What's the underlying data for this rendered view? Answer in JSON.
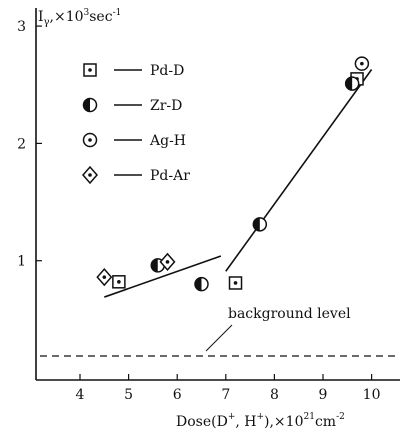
{
  "chart_data": {
    "type": "scatter",
    "ylabel_prefix": "I",
    "ylabel_sub": "γ",
    "ylabel_unit": ",×10",
    "ylabel_exp": "3",
    "ylabel_tail": "sec",
    "ylabel_tail_exp": "-1",
    "xlabel_a": "Dose(D",
    "xlabel_sup1": "+",
    "xlabel_b": ", H",
    "xlabel_sup2": "+",
    "xlabel_c": "),×10",
    "xlabel_exp": "21",
    "xlabel_d": "cm",
    "xlabel_exp2": "-2",
    "xlim": [
      3.1,
      10.7
    ],
    "ylim": [
      0,
      3.05
    ],
    "x_ticks": [
      "4",
      "5",
      "6",
      "7",
      "8",
      "9",
      "10"
    ],
    "y_ticks": [
      "1",
      "2",
      "3"
    ],
    "legend_placement": "top-left",
    "series": [
      {
        "name": "Pd-D",
        "marker": "square-dot",
        "points": [
          [
            4.8,
            0.82
          ],
          [
            7.2,
            0.81
          ],
          [
            9.7,
            2.55
          ]
        ]
      },
      {
        "name": "Zr-D",
        "marker": "half-filled-circle",
        "points": [
          [
            5.6,
            0.96
          ],
          [
            6.5,
            0.8
          ],
          [
            7.7,
            1.31
          ],
          [
            9.6,
            2.51
          ]
        ]
      },
      {
        "name": "Ag-H",
        "marker": "circle-dot",
        "points": [
          [
            9.8,
            2.68
          ]
        ]
      },
      {
        "name": "Pd-Ar",
        "marker": "diamond-dot",
        "points": [
          [
            4.5,
            0.86
          ],
          [
            5.8,
            0.99
          ]
        ]
      }
    ],
    "fit_lines": [
      {
        "from": [
          4.5,
          0.69
        ],
        "to": [
          6.9,
          1.04
        ]
      },
      {
        "from": [
          7.0,
          0.91
        ],
        "to": [
          10.0,
          2.63
        ]
      }
    ],
    "background_level": 0.23,
    "annotation": "background level"
  }
}
